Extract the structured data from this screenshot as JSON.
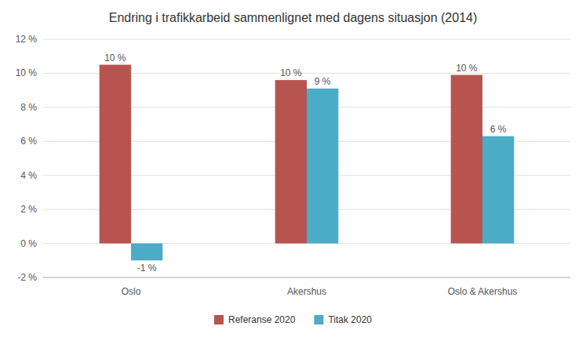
{
  "chart_data": {
    "type": "bar",
    "title": "Endring i trafikkarbeid sammenlignet med dagens situasjon (2014)",
    "categories": [
      "Oslo",
      "Akershus",
      "Oslo & Akershus"
    ],
    "series": [
      {
        "name": "Referanse 2020",
        "color": "#b85450",
        "values": [
          0.105,
          0.096,
          0.099
        ],
        "value_labels": [
          "10 %",
          "10 %",
          "10 %"
        ]
      },
      {
        "name": "Titak 2020",
        "color": "#4bacc6",
        "values": [
          -0.01,
          0.091,
          0.063
        ],
        "value_labels": [
          "-1 %",
          "9 %",
          "6 %"
        ]
      }
    ],
    "ylim": [
      -0.02,
      0.12
    ],
    "yticks": [
      {
        "value": -0.02,
        "label": "-2 %"
      },
      {
        "value": 0.0,
        "label": "0 %"
      },
      {
        "value": 0.02,
        "label": "2 %"
      },
      {
        "value": 0.04,
        "label": "4 %"
      },
      {
        "value": 0.06,
        "label": "6 %"
      },
      {
        "value": 0.08,
        "label": "8 %"
      },
      {
        "value": 0.1,
        "label": "10 %"
      },
      {
        "value": 0.12,
        "label": "12 %"
      }
    ],
    "grid": true,
    "legend": "bottom",
    "data_labels": true
  }
}
